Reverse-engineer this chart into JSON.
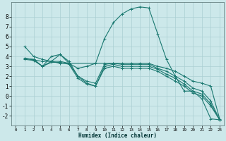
{
  "xlabel": "Humidex (Indice chaleur)",
  "bg_color": "#cce8ea",
  "grid_color": "#aacfd2",
  "line_color": "#1a7870",
  "xlim": [
    -0.5,
    23.5
  ],
  "ylim": [
    -3,
    9.5
  ],
  "xticks": [
    0,
    1,
    2,
    3,
    4,
    5,
    6,
    7,
    8,
    9,
    10,
    11,
    12,
    13,
    14,
    15,
    16,
    17,
    18,
    19,
    20,
    21,
    22,
    23
  ],
  "yticks": [
    -2,
    -1,
    0,
    1,
    2,
    3,
    4,
    5,
    6,
    7,
    8
  ],
  "series": [
    {
      "x": [
        1,
        2,
        3,
        4,
        5,
        6,
        7,
        8,
        9,
        10,
        11,
        12,
        13,
        14,
        15,
        16,
        17,
        18,
        19,
        20,
        21,
        22,
        23
      ],
      "y": [
        5.0,
        4.0,
        3.7,
        3.5,
        4.2,
        3.3,
        2.8,
        3.0,
        3.3,
        5.8,
        7.4,
        8.3,
        8.8,
        9.0,
        8.9,
        6.3,
        3.7,
        2.0,
        0.5,
        0.5,
        -0.3,
        -2.3,
        -2.4
      ]
    },
    {
      "x": [
        1,
        3,
        4,
        5,
        6,
        10,
        11,
        12,
        13,
        14,
        15,
        16,
        17,
        18,
        19,
        20,
        21,
        22,
        23
      ],
      "y": [
        3.8,
        3.5,
        3.5,
        3.3,
        3.3,
        3.3,
        3.3,
        3.3,
        3.3,
        3.3,
        3.3,
        3.0,
        2.8,
        2.5,
        2.0,
        1.5,
        1.3,
        1.0,
        -2.3
      ]
    },
    {
      "x": [
        1,
        2,
        3,
        4,
        5,
        6,
        7,
        8,
        9,
        10,
        11,
        12,
        13,
        14,
        15,
        16,
        17,
        18,
        19,
        20,
        21,
        22,
        23
      ],
      "y": [
        3.8,
        3.7,
        3.0,
        4.0,
        4.2,
        3.5,
        2.0,
        1.5,
        1.3,
        3.2,
        3.3,
        3.2,
        3.2,
        3.2,
        3.2,
        2.8,
        2.5,
        2.0,
        1.5,
        0.8,
        0.5,
        -0.5,
        -2.4
      ]
    },
    {
      "x": [
        1,
        2,
        3,
        4,
        5,
        6,
        7,
        8,
        9,
        10,
        11,
        12,
        13,
        14,
        15,
        16,
        17,
        18,
        19,
        20,
        21,
        22,
        23
      ],
      "y": [
        3.8,
        3.7,
        3.0,
        3.5,
        3.5,
        3.3,
        2.0,
        1.3,
        1.0,
        3.0,
        3.2,
        3.0,
        3.0,
        3.0,
        3.0,
        2.7,
        2.2,
        1.8,
        1.2,
        0.5,
        0.2,
        -0.8,
        -2.4
      ]
    },
    {
      "x": [
        1,
        2,
        3,
        4,
        5,
        6,
        7,
        8,
        9,
        10,
        11,
        12,
        13,
        14,
        15,
        16,
        17,
        18,
        19,
        20,
        21,
        22,
        23
      ],
      "y": [
        3.7,
        3.6,
        3.0,
        3.4,
        3.4,
        3.2,
        1.8,
        1.2,
        1.0,
        2.8,
        3.0,
        2.8,
        2.8,
        2.8,
        2.8,
        2.5,
        2.0,
        1.5,
        1.0,
        0.3,
        0.0,
        -1.0,
        -2.4
      ]
    }
  ]
}
